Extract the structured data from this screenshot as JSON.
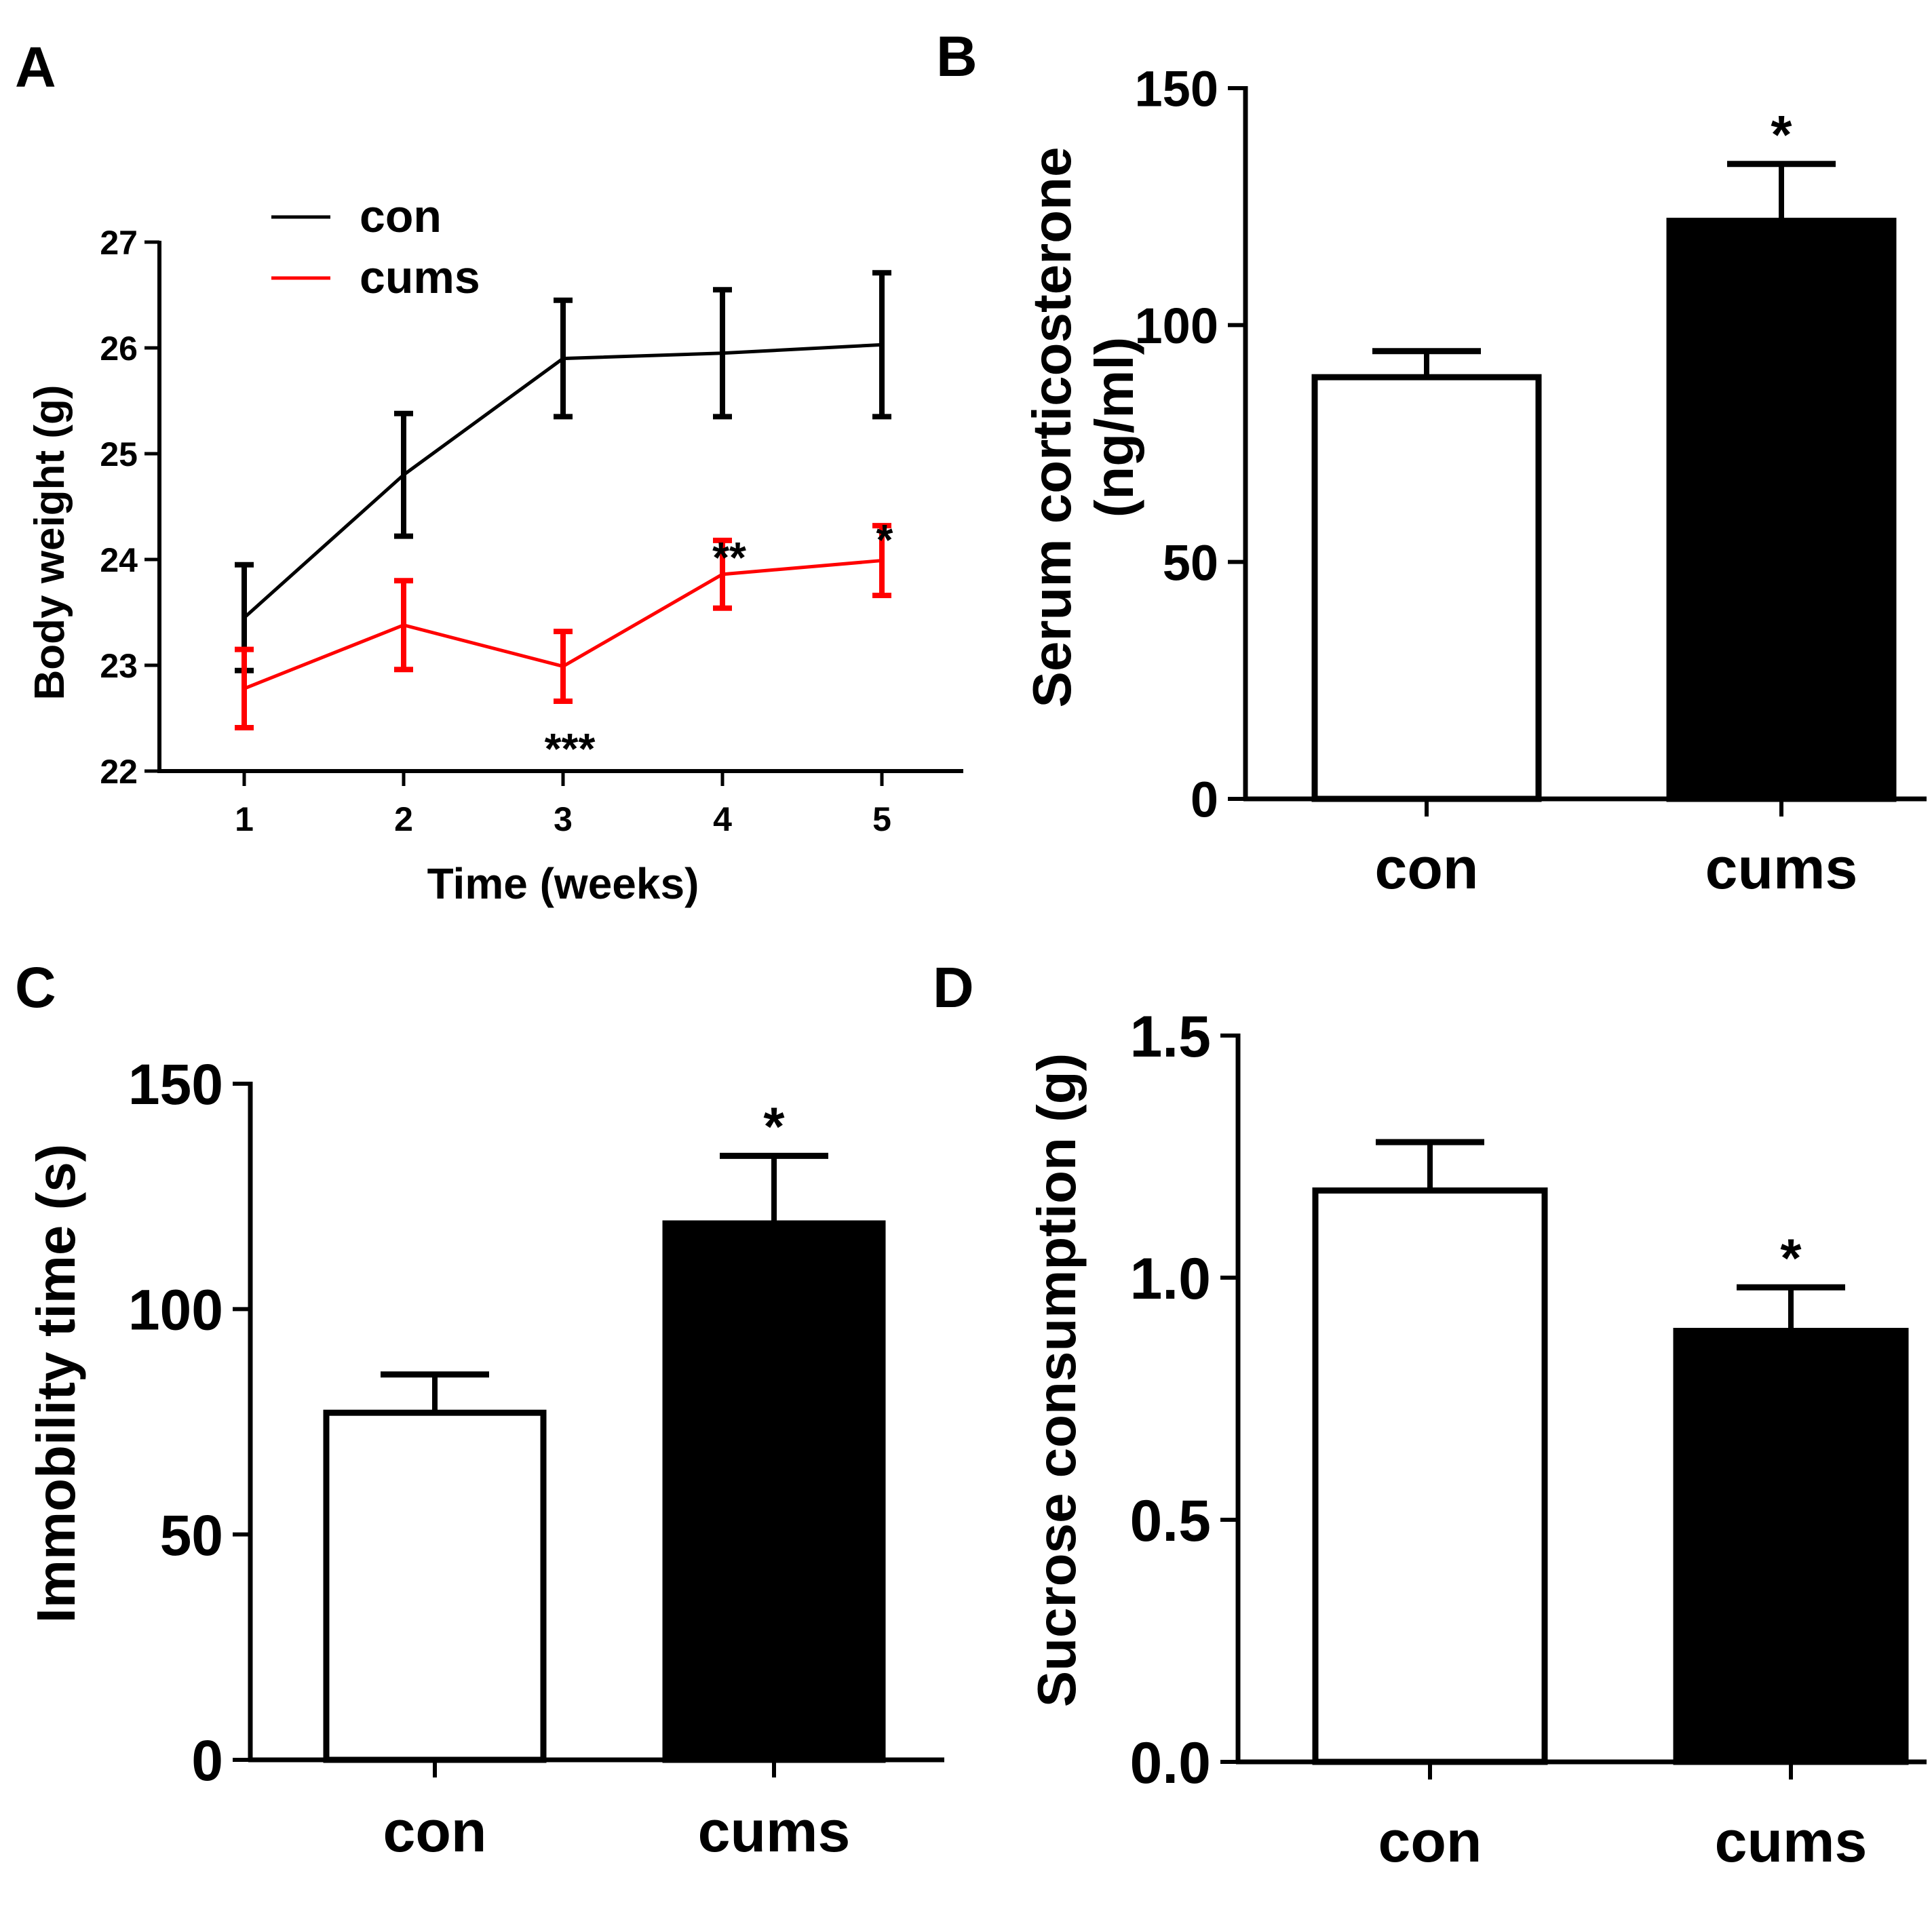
{
  "colors": {
    "con_line": "#000000",
    "cums_line": "#ff0000",
    "con_bar_fill": "#ffffff",
    "cums_bar_fill": "#000000"
  },
  "chart_data": [
    {
      "panel": "A",
      "type": "line",
      "xlabel": "Time (weeks)",
      "ylabel": "Body weight (g)",
      "x": [
        1,
        2,
        3,
        4,
        5
      ],
      "xticks": [
        "1",
        "2",
        "3",
        "4",
        "5"
      ],
      "ylim": [
        22,
        27
      ],
      "yticks": [
        "22",
        "23",
        "24",
        "25",
        "26",
        "27"
      ],
      "legend": "top-left",
      "series": [
        {
          "name": "con",
          "color": "#000000",
          "values": [
            23.45,
            24.8,
            25.9,
            25.95,
            26.03
          ],
          "errors": [
            0.5,
            0.58,
            0.55,
            0.6,
            0.68
          ]
        },
        {
          "name": "cums",
          "color": "#ff0000",
          "values": [
            22.78,
            23.38,
            22.99,
            23.86,
            23.99
          ],
          "errors": [
            0.37,
            0.42,
            0.33,
            0.32,
            0.33
          ]
        }
      ],
      "annotations": [
        {
          "text": "***",
          "x": 3
        },
        {
          "text": "**",
          "x": 4
        },
        {
          "text": "*",
          "x": 5
        }
      ]
    },
    {
      "panel": "B",
      "type": "bar",
      "ylabel_lines": [
        "Serum corticosterone",
        "(ng/ml)"
      ],
      "categories": [
        "con",
        "cums"
      ],
      "values": [
        89,
        122
      ],
      "errors": [
        5.5,
        12
      ],
      "ylim": [
        0,
        150
      ],
      "yticks": [
        "0",
        "50",
        "100",
        "150"
      ],
      "annotations": [
        "",
        "*"
      ]
    },
    {
      "panel": "C",
      "type": "bar",
      "ylabel": "Immobility time (s)",
      "categories": [
        "con",
        "cums"
      ],
      "values": [
        77,
        119
      ],
      "errors": [
        8.5,
        15
      ],
      "ylim": [
        0,
        150
      ],
      "yticks": [
        "0",
        "50",
        "100",
        "150"
      ],
      "annotations": [
        "",
        "*"
      ]
    },
    {
      "panel": "D",
      "type": "bar",
      "ylabel": "Sucrose consumption (g)",
      "categories": [
        "con",
        "cums"
      ],
      "values": [
        1.18,
        0.89
      ],
      "errors": [
        0.1,
        0.09
      ],
      "ylim": [
        0,
        1.5
      ],
      "yticks": [
        "0.0",
        "0.5",
        "1.0",
        "1.5"
      ],
      "annotations": [
        "",
        "*"
      ]
    }
  ]
}
